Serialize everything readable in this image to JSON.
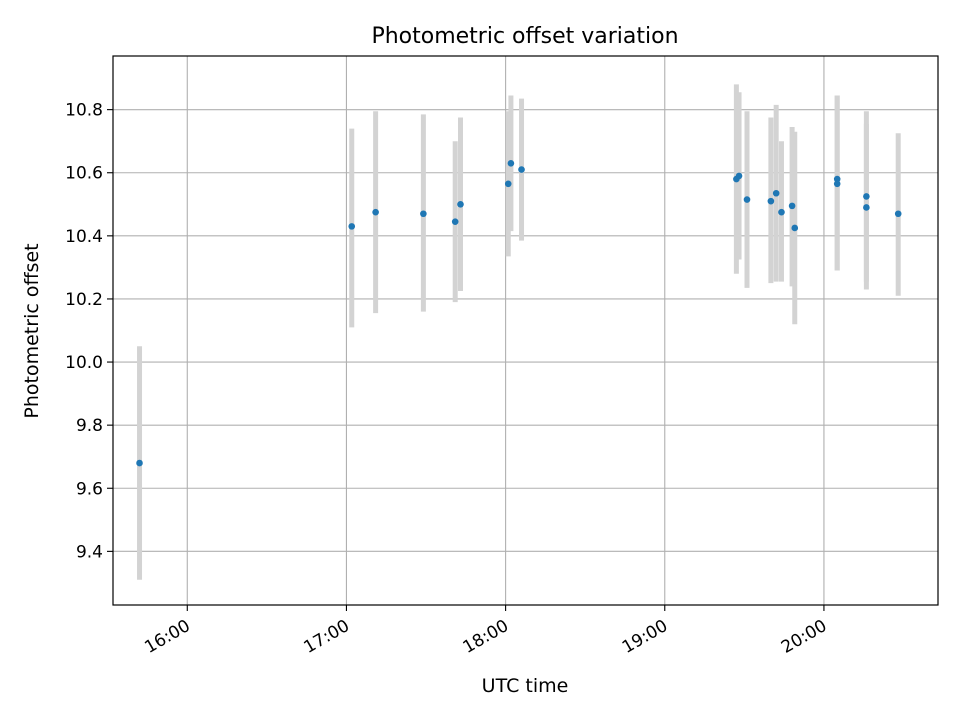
{
  "chart_data": {
    "type": "scatter",
    "title": "Photometric offset variation",
    "xlabel": "UTC time",
    "ylabel": "Photometric offset",
    "x_axis": {
      "kind": "time",
      "range": [
        "15:32",
        "20:43"
      ],
      "ticks": [
        "16:00",
        "17:00",
        "18:00",
        "19:00",
        "20:00"
      ]
    },
    "y_axis": {
      "range": [
        9.23,
        10.97
      ],
      "ticks": [
        9.4,
        9.6,
        9.8,
        10.0,
        10.2,
        10.4,
        10.6,
        10.8
      ],
      "tick_labels": [
        "9.4",
        "9.6",
        "9.8",
        "10.0",
        "10.2",
        "10.4",
        "10.6",
        "10.8"
      ]
    },
    "grid": true,
    "legend": "none",
    "colors": {
      "points": "#1f77b4",
      "errorbars": "#d3d3d3",
      "grid": "#b0b0b0"
    },
    "series": [
      {
        "points": [
          {
            "t": "15:42",
            "y": 9.68,
            "lo": 9.31,
            "hi": 10.05
          },
          {
            "t": "17:02",
            "y": 10.43,
            "lo": 10.11,
            "hi": 10.74
          },
          {
            "t": "17:11",
            "y": 10.475,
            "lo": 10.155,
            "hi": 10.795
          },
          {
            "t": "17:29",
            "y": 10.47,
            "lo": 10.16,
            "hi": 10.785
          },
          {
            "t": "17:41",
            "y": 10.445,
            "lo": 10.19,
            "hi": 10.7
          },
          {
            "t": "17:43",
            "y": 10.5,
            "lo": 10.225,
            "hi": 10.775
          },
          {
            "t": "18:01",
            "y": 10.565,
            "lo": 10.335,
            "hi": 10.795
          },
          {
            "t": "18:02",
            "y": 10.63,
            "lo": 10.415,
            "hi": 10.845
          },
          {
            "t": "18:06",
            "y": 10.61,
            "lo": 10.385,
            "hi": 10.835
          },
          {
            "t": "19:27",
            "y": 10.58,
            "lo": 10.28,
            "hi": 10.88
          },
          {
            "t": "19:28",
            "y": 10.59,
            "lo": 10.325,
            "hi": 10.855
          },
          {
            "t": "19:31",
            "y": 10.515,
            "lo": 10.235,
            "hi": 10.795
          },
          {
            "t": "19:40",
            "y": 10.51,
            "lo": 10.25,
            "hi": 10.775
          },
          {
            "t": "19:42",
            "y": 10.535,
            "lo": 10.255,
            "hi": 10.815
          },
          {
            "t": "19:44",
            "y": 10.475,
            "lo": 10.255,
            "hi": 10.7
          },
          {
            "t": "19:48",
            "y": 10.495,
            "lo": 10.24,
            "hi": 10.745
          },
          {
            "t": "19:49",
            "y": 10.425,
            "lo": 10.12,
            "hi": 10.73
          },
          {
            "t": "20:05",
            "y": 10.58,
            "lo": 10.29,
            "hi": 10.845
          },
          {
            "t": "20:05",
            "y": 10.565,
            "lo": 10.29,
            "hi": 10.845
          },
          {
            "t": "20:16",
            "y": 10.49,
            "lo": 10.23,
            "hi": 10.755
          },
          {
            "t": "20:16",
            "y": 10.525,
            "lo": 10.255,
            "hi": 10.795
          },
          {
            "t": "20:28",
            "y": 10.47,
            "lo": 10.21,
            "hi": 10.725
          }
        ]
      }
    ]
  }
}
